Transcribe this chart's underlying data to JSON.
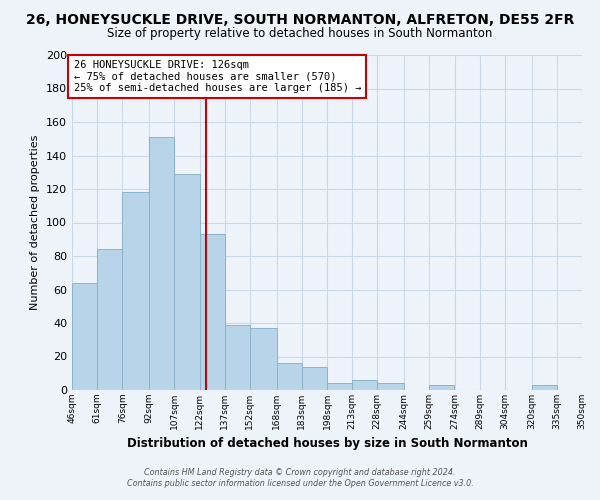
{
  "title": "26, HONEYSUCKLE DRIVE, SOUTH NORMANTON, ALFRETON, DE55 2FR",
  "subtitle": "Size of property relative to detached houses in South Normanton",
  "xlabel": "Distribution of detached houses by size in South Normanton",
  "ylabel": "Number of detached properties",
  "bar_color": "#b8d4e8",
  "bar_edgecolor": "#8ab4cc",
  "grid_color": "#c8d8e8",
  "background_color": "#eef3fa",
  "vline_x": 126,
  "vline_color": "#cc0000",
  "annotation_title": "26 HONEYSUCKLE DRIVE: 126sqm",
  "annotation_line1": "← 75% of detached houses are smaller (570)",
  "annotation_line2": "25% of semi-detached houses are larger (185) →",
  "annotation_box_edgecolor": "#cc0000",
  "annotation_box_facecolor": "#ffffff",
  "footer_line1": "Contains HM Land Registry data © Crown copyright and database right 2024.",
  "footer_line2": "Contains public sector information licensed under the Open Government Licence v3.0.",
  "bin_edges": [
    46,
    61,
    76,
    92,
    107,
    122,
    137,
    152,
    168,
    183,
    198,
    213,
    228,
    244,
    259,
    274,
    289,
    304,
    320,
    335,
    350
  ],
  "bin_counts": [
    64,
    84,
    118,
    151,
    129,
    93,
    39,
    37,
    16,
    14,
    4,
    6,
    4,
    0,
    3,
    0,
    0,
    0,
    3,
    0
  ],
  "tick_labels": [
    "46sqm",
    "61sqm",
    "76sqm",
    "92sqm",
    "107sqm",
    "122sqm",
    "137sqm",
    "152sqm",
    "168sqm",
    "183sqm",
    "198sqm",
    "213sqm",
    "228sqm",
    "244sqm",
    "259sqm",
    "274sqm",
    "289sqm",
    "304sqm",
    "320sqm",
    "335sqm",
    "350sqm"
  ],
  "ylim": [
    0,
    200
  ],
  "yticks": [
    0,
    20,
    40,
    60,
    80,
    100,
    120,
    140,
    160,
    180,
    200
  ]
}
